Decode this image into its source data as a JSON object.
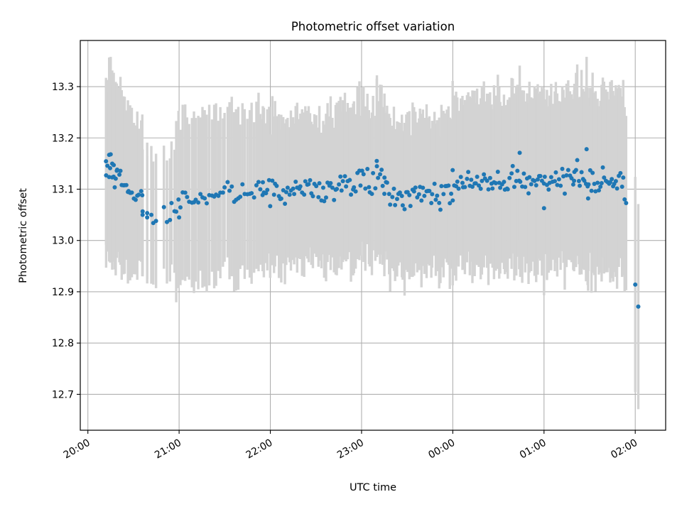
{
  "chart_data": {
    "type": "scatter",
    "title": "Photometric offset variation",
    "xlabel": "UTC time",
    "ylabel": "Photometric offset",
    "x_unit": "UTC",
    "x_ticks": [
      "20:00",
      "21:00",
      "22:00",
      "23:00",
      "00:00",
      "01:00",
      "02:00"
    ],
    "xlim": [
      "19:55",
      "02:20"
    ],
    "y_ticks": [
      12.7,
      12.8,
      12.9,
      13.0,
      13.1,
      13.2,
      13.3
    ],
    "ylim": [
      12.63,
      13.39
    ],
    "grid": true,
    "legend": "none",
    "colors": {
      "points": "#1f77b4",
      "errorbars": "#d3d3d3",
      "grid": "#b0b0b0"
    },
    "segments": [
      {
        "start": "20:12",
        "end": "20:28",
        "n": 18,
        "y": [
          13.14,
          13.11,
          13.1
        ],
        "spread": 0.018,
        "err": [
          0.18,
          0.17,
          0.16
        ],
        "errspread": 0.02
      },
      {
        "start": "20:28",
        "end": "20:36",
        "n": 8,
        "y": [
          13.1,
          13.08
        ],
        "spread": 0.015,
        "err": [
          0.15,
          0.14
        ],
        "errspread": 0.02
      },
      {
        "start": "20:36",
        "end": "20:45",
        "n": 4,
        "y": [
          13.06,
          13.04
        ],
        "spread": 0.01,
        "err": [
          0.13,
          0.12
        ],
        "errspread": 0.02
      },
      {
        "start": "20:58",
        "end": "21:55",
        "n": 40,
        "y": [
          13.08,
          13.095
        ],
        "spread": 0.016,
        "err": [
          0.16,
          0.16
        ],
        "errspread": 0.02
      },
      {
        "start": "21:55",
        "end": "23:15",
        "n": 78,
        "y": [
          13.095,
          13.1,
          13.12
        ],
        "spread": 0.017,
        "err": [
          0.15,
          0.15,
          0.16
        ],
        "errspread": 0.02
      },
      {
        "start": "23:15",
        "end": "00:00",
        "n": 45,
        "y": [
          13.09,
          13.09
        ],
        "spread": 0.02,
        "err": [
          0.15,
          0.16
        ],
        "errspread": 0.02
      },
      {
        "start": "00:00",
        "end": "01:20",
        "n": 80,
        "y": [
          13.11,
          13.115
        ],
        "spread": 0.02,
        "err": [
          0.17,
          0.17
        ],
        "errspread": 0.02
      },
      {
        "start": "01:20",
        "end": "01:52",
        "n": 35,
        "y": [
          13.13,
          13.1
        ],
        "spread": 0.02,
        "err": [
          0.18,
          0.18
        ],
        "errspread": 0.02
      }
    ],
    "points": [
      {
        "x": "20:12",
        "y": 13.127,
        "err": 0.18
      },
      {
        "x": "20:14",
        "y": 13.167,
        "err": 0.19
      },
      {
        "x": "20:15",
        "y": 13.168,
        "err": 0.19
      },
      {
        "x": "20:16",
        "y": 13.123,
        "err": 0.18
      },
      {
        "x": "20:17",
        "y": 13.147,
        "err": 0.18
      },
      {
        "x": "20:19",
        "y": 13.136,
        "err": 0.17
      },
      {
        "x": "20:36",
        "y": 13.05,
        "err": 0.12
      },
      {
        "x": "20:39",
        "y": 13.045,
        "err": 0.12
      },
      {
        "x": "20:43",
        "y": 13.034,
        "err": 0.12
      },
      {
        "x": "20:50",
        "y": 13.065,
        "err": 0.12
      },
      {
        "x": "20:52",
        "y": 13.036,
        "err": 0.12
      },
      {
        "x": "20:54",
        "y": 13.04,
        "err": 0.12
      },
      {
        "x": "20:55",
        "y": 13.073,
        "err": 0.12
      },
      {
        "x": "20:57",
        "y": 13.057,
        "err": 0.12
      },
      {
        "x": "21:00",
        "y": 13.045,
        "err": 0.12
      },
      {
        "x": "23:10",
        "y": 13.155,
        "err": 0.16
      },
      {
        "x": "00:44",
        "y": 13.171,
        "err": 0.17
      },
      {
        "x": "01:00",
        "y": 13.063,
        "err": 0.17
      },
      {
        "x": "01:28",
        "y": 13.178,
        "err": 0.18
      },
      {
        "x": "01:29",
        "y": 13.082,
        "err": 0.18
      },
      {
        "x": "01:53",
        "y": 13.08,
        "err": 0.18
      },
      {
        "x": "01:54",
        "y": 13.073,
        "err": 0.17
      },
      {
        "x": "02:00",
        "y": 12.914,
        "err": 0.21
      },
      {
        "x": "02:02",
        "y": 12.871,
        "err": 0.2
      }
    ]
  }
}
